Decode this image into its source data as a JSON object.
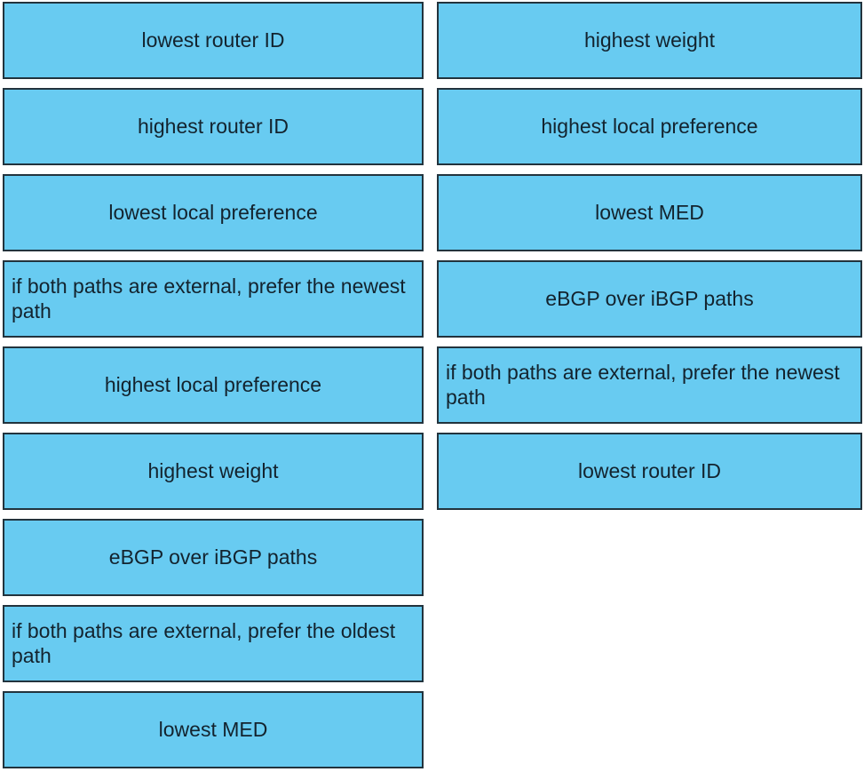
{
  "theme": {
    "page_bg": "#ffffff",
    "box_fill": "#68cbf1",
    "box_border": "#22333d",
    "text_color": "#13232e"
  },
  "question": {
    "kind": "drag-and-drop",
    "topic": "BGP best path selection criteria"
  },
  "columns": {
    "left": {
      "name": "options",
      "items": [
        {
          "label": "lowest router ID",
          "align": "center"
        },
        {
          "label": "highest router ID",
          "align": "center"
        },
        {
          "label": "lowest local preference",
          "align": "center"
        },
        {
          "label": "if both paths are external, prefer the newest\npath",
          "align": "left"
        },
        {
          "label": "highest local preference",
          "align": "center"
        },
        {
          "label": "highest weight",
          "align": "center"
        },
        {
          "label": "eBGP over iBGP paths",
          "align": "center"
        },
        {
          "label": "if both paths are external, prefer the oldest\npath",
          "align": "left"
        },
        {
          "label": "lowest MED",
          "align": "center"
        }
      ]
    },
    "right": {
      "name": "answers",
      "items": [
        {
          "label": "highest weight",
          "align": "center"
        },
        {
          "label": "highest local preference",
          "align": "center"
        },
        {
          "label": "lowest MED",
          "align": "center"
        },
        {
          "label": "eBGP over iBGP paths",
          "align": "center"
        },
        {
          "label": "if both paths are external, prefer the newest\npath",
          "align": "left"
        },
        {
          "label": "lowest router ID",
          "align": "center"
        }
      ]
    }
  }
}
